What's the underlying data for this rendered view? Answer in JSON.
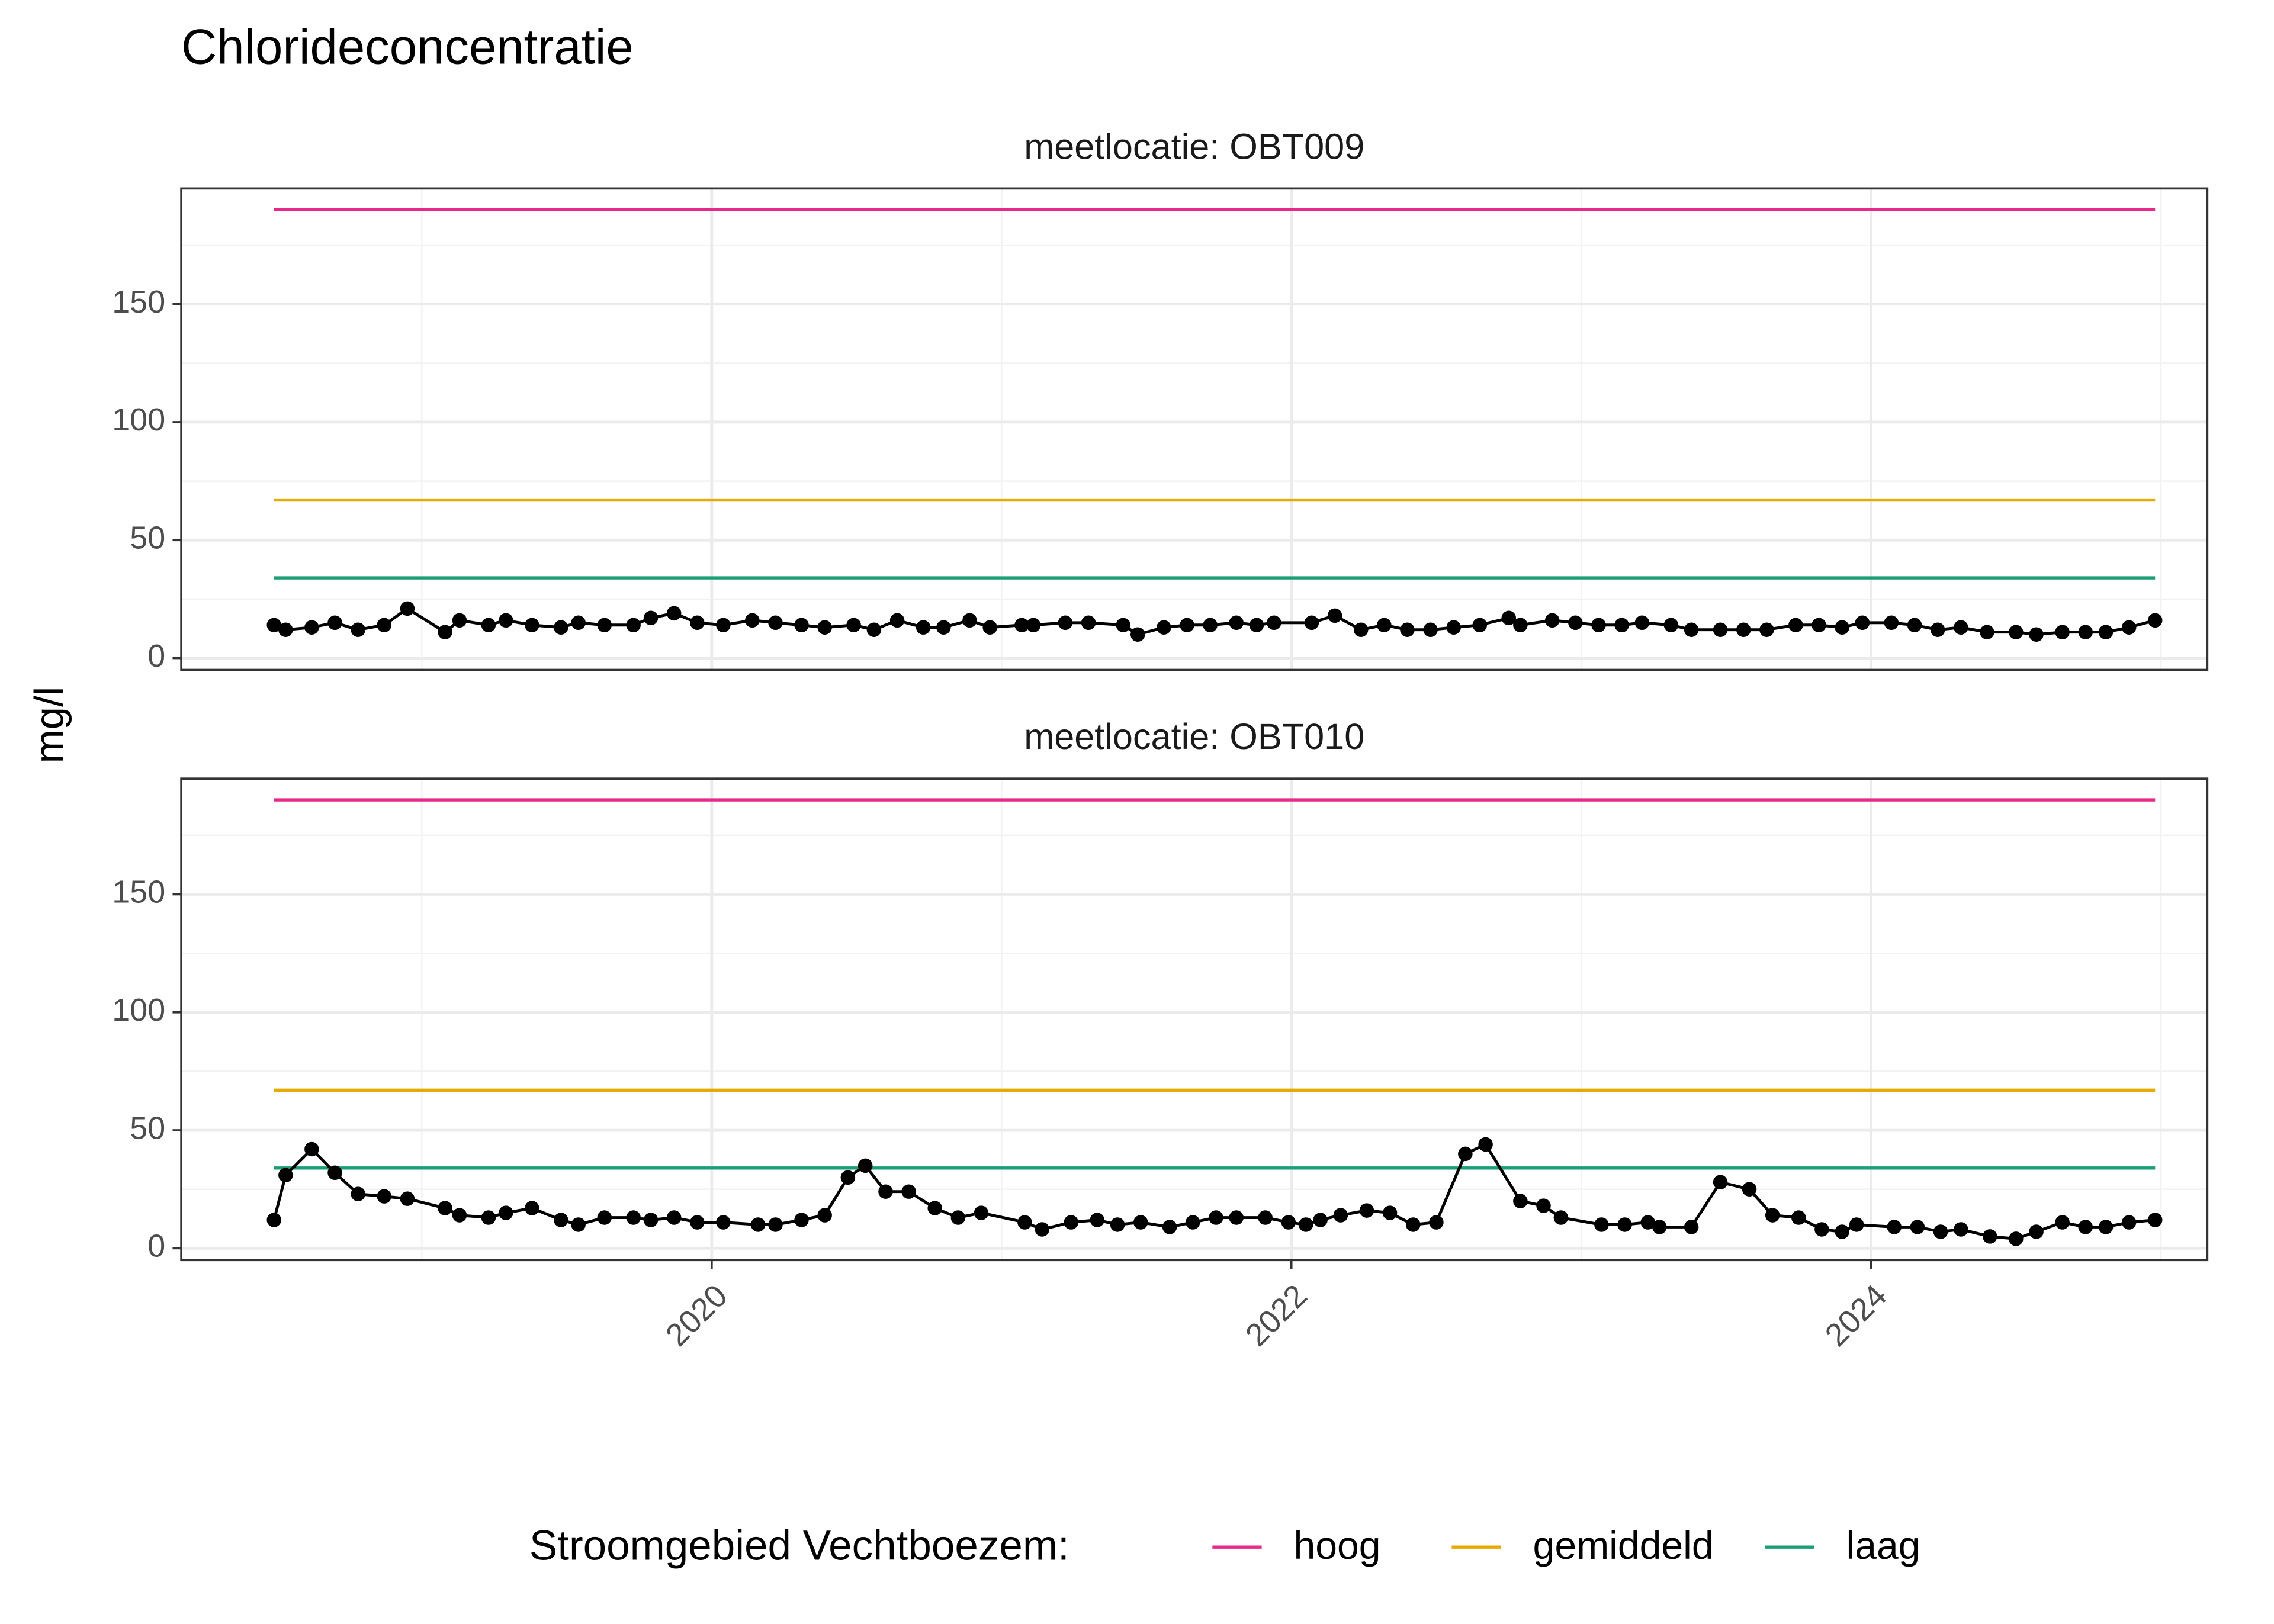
{
  "title": "Chlorideconcentratie",
  "y_label": "mg/l",
  "legend": {
    "title": "Stroomgebied Vechtboezem:"
  },
  "reference_lines": [
    {
      "name": "hoog",
      "color": "#e7298a",
      "value": 190
    },
    {
      "name": "gemiddeld",
      "color": "#e6ab02",
      "value": 67
    },
    {
      "name": "laag",
      "color": "#1b9e77",
      "value": 34
    }
  ],
  "chart_data": [
    {
      "type": "line",
      "title": "meetlocatie: OBT009",
      "color": "#000000",
      "x": [
        2018.49,
        2018.53,
        2018.62,
        2018.7,
        2018.78,
        2018.87,
        2018.95,
        2019.08,
        2019.13,
        2019.23,
        2019.29,
        2019.38,
        2019.48,
        2019.54,
        2019.63,
        2019.73,
        2019.79,
        2019.87,
        2019.95,
        2020.04,
        2020.14,
        2020.22,
        2020.31,
        2020.39,
        2020.49,
        2020.56,
        2020.64,
        2020.73,
        2020.8,
        2020.89,
        2020.96,
        2021.07,
        2021.11,
        2021.22,
        2021.3,
        2021.42,
        2021.47,
        2021.56,
        2021.64,
        2021.72,
        2021.81,
        2021.88,
        2021.94,
        2022.07,
        2022.15,
        2022.24,
        2022.32,
        2022.4,
        2022.48,
        2022.56,
        2022.65,
        2022.75,
        2022.79,
        2022.9,
        2022.98,
        2023.06,
        2023.14,
        2023.21,
        2023.31,
        2023.38,
        2023.48,
        2023.56,
        2023.64,
        2023.74,
        2023.82,
        2023.9,
        2023.97,
        2024.07,
        2024.15,
        2024.23,
        2024.31,
        2024.4,
        2024.5,
        2024.57,
        2024.66,
        2024.74,
        2024.81,
        2024.89,
        2024.98
      ],
      "values": [
        14,
        12,
        13,
        15,
        12,
        14,
        21,
        11,
        16,
        14,
        16,
        14,
        13,
        15,
        14,
        14,
        17,
        19,
        15,
        14,
        16,
        15,
        14,
        13,
        14,
        12,
        16,
        13,
        13,
        16,
        13,
        14,
        14,
        15,
        15,
        14,
        10,
        13,
        14,
        14,
        15,
        14,
        15,
        15,
        18,
        12,
        14,
        12,
        12,
        13,
        14,
        17,
        14,
        16,
        15,
        14,
        14,
        15,
        14,
        12,
        12,
        12,
        12,
        14,
        14,
        13,
        15,
        15,
        14,
        12,
        13,
        11,
        11,
        10,
        11,
        11,
        11,
        13,
        16
      ],
      "xlim": [
        2018.17,
        2025.16
      ],
      "xticks": [
        2020,
        2022,
        2024
      ],
      "xminor": [
        2019,
        2021,
        2023,
        2025
      ],
      "ylim": [
        -5,
        199
      ],
      "yticks": [
        0,
        50,
        100,
        150
      ],
      "yminor": [
        25,
        75,
        125,
        175
      ],
      "grid": true
    },
    {
      "type": "line",
      "title": "meetlocatie: OBT010",
      "color": "#000000",
      "x": [
        2018.49,
        2018.53,
        2018.62,
        2018.7,
        2018.78,
        2018.87,
        2018.95,
        2019.08,
        2019.13,
        2019.23,
        2019.29,
        2019.38,
        2019.48,
        2019.54,
        2019.63,
        2019.73,
        2019.79,
        2019.87,
        2019.95,
        2020.04,
        2020.16,
        2020.22,
        2020.31,
        2020.39,
        2020.47,
        2020.53,
        2020.6,
        2020.68,
        2020.77,
        2020.85,
        2020.93,
        2021.08,
        2021.14,
        2021.24,
        2021.33,
        2021.4,
        2021.48,
        2021.58,
        2021.66,
        2021.74,
        2021.81,
        2021.91,
        2021.99,
        2022.05,
        2022.1,
        2022.17,
        2022.26,
        2022.34,
        2022.42,
        2022.5,
        2022.6,
        2022.67,
        2022.79,
        2022.87,
        2022.93,
        2023.07,
        2023.15,
        2023.23,
        2023.27,
        2023.38,
        2023.48,
        2023.58,
        2023.66,
        2023.75,
        2023.83,
        2023.9,
        2023.95,
        2024.08,
        2024.16,
        2024.24,
        2024.31,
        2024.41,
        2024.5,
        2024.57,
        2024.66,
        2024.74,
        2024.81,
        2024.89,
        2024.98
      ],
      "values": [
        12,
        31,
        42,
        32,
        23,
        22,
        21,
        17,
        14,
        13,
        15,
        17,
        12,
        10,
        13,
        13,
        12,
        13,
        11,
        11,
        10,
        10,
        12,
        14,
        30,
        35,
        24,
        24,
        17,
        13,
        15,
        11,
        8,
        11,
        12,
        10,
        11,
        9,
        11,
        13,
        13,
        13,
        11,
        10,
        12,
        14,
        16,
        15,
        10,
        11,
        40,
        44,
        20,
        18,
        13,
        10,
        10,
        11,
        9,
        9,
        28,
        25,
        14,
        13,
        8,
        7,
        10,
        9,
        9,
        7,
        8,
        5,
        4,
        7,
        11,
        9,
        9,
        11,
        12
      ],
      "xlim": [
        2018.17,
        2025.16
      ],
      "xticks": [
        2020,
        2022,
        2024
      ],
      "xminor": [
        2019,
        2021,
        2023,
        2025
      ],
      "ylim": [
        -5,
        199
      ],
      "yticks": [
        0,
        50,
        100,
        150
      ],
      "yminor": [
        25,
        75,
        125,
        175
      ],
      "grid": true
    }
  ]
}
